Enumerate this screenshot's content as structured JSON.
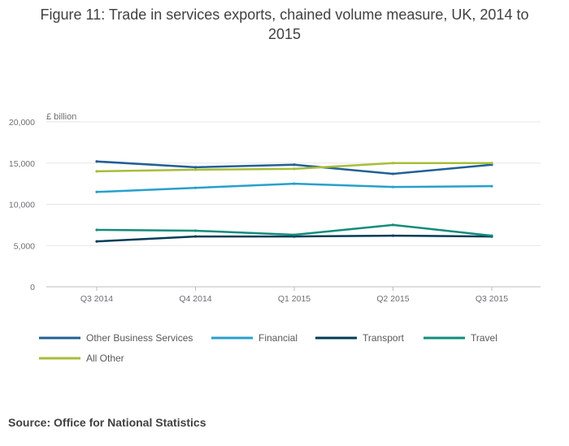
{
  "title": {
    "line1": "Figure 11: Trade in services exports, chained volume measure, UK, 2014 to",
    "line2": "2015"
  },
  "source": "Source: Office for National Statistics",
  "chart_data": {
    "type": "line",
    "title": "Figure 11: Trade in services exports, chained volume measure, UK, 2014 to 2015",
    "ylabel": "£ billion",
    "xlabel": "",
    "categories": [
      "Q3 2014",
      "Q4 2014",
      "Q1 2015",
      "Q2 2015",
      "Q3 2015"
    ],
    "ylim": [
      0,
      20000
    ],
    "yticks": [
      0,
      5000,
      10000,
      15000,
      20000
    ],
    "ytick_labels": [
      "0",
      "5,000",
      "10,000",
      "15,000",
      "20,000"
    ],
    "grid": true,
    "legend_position": "bottom",
    "series": [
      {
        "name": "Other Business Services",
        "color": "#206095",
        "values": [
          15200,
          14500,
          14800,
          13700,
          14800
        ]
      },
      {
        "name": "Financial",
        "color": "#27a0cc",
        "values": [
          11500,
          12000,
          12500,
          12100,
          12200
        ]
      },
      {
        "name": "Transport",
        "color": "#003c57",
        "values": [
          5500,
          6100,
          6100,
          6200,
          6100
        ]
      },
      {
        "name": "Travel",
        "color": "#118c7b",
        "values": [
          6900,
          6800,
          6300,
          7500,
          6200
        ]
      },
      {
        "name": "All Other",
        "color": "#a8bd3a",
        "values": [
          14000,
          14200,
          14300,
          15000,
          15000
        ]
      }
    ]
  }
}
